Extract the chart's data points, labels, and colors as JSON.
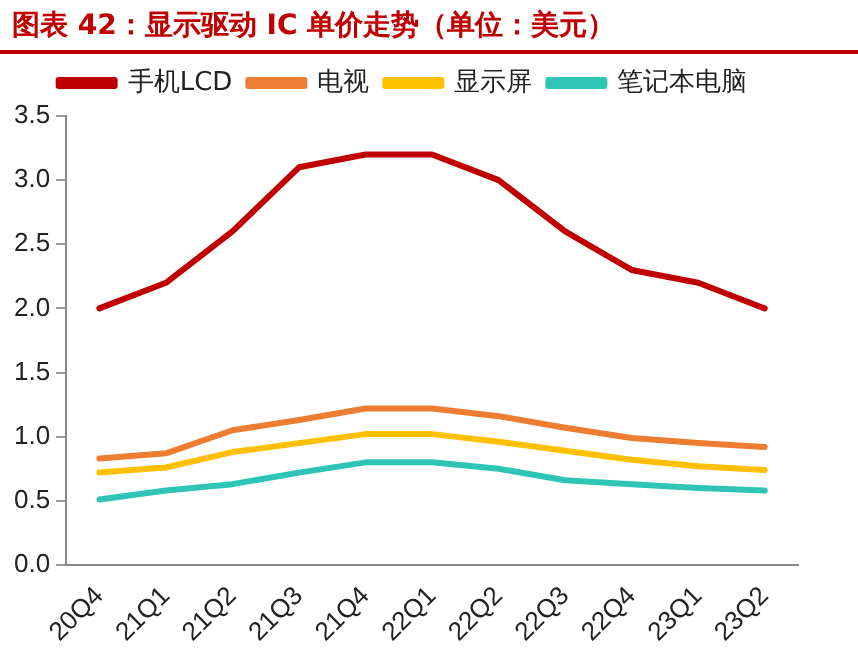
{
  "chart_data": {
    "type": "line",
    "title": "图表 42：显示驱动 IC 单价走势（单位：美元）",
    "categories": [
      "20Q4",
      "21Q1",
      "21Q2",
      "21Q3",
      "21Q4",
      "22Q1",
      "22Q2",
      "22Q3",
      "22Q4",
      "23Q1",
      "23Q2"
    ],
    "series": [
      {
        "name": "手机LCD",
        "color": "#c00000",
        "values": [
          2.0,
          2.2,
          2.6,
          3.1,
          3.2,
          3.2,
          3.0,
          2.6,
          2.3,
          2.2,
          2.0
        ]
      },
      {
        "name": "电视",
        "color": "#ed7d31",
        "values": [
          0.83,
          0.87,
          1.05,
          1.13,
          1.22,
          1.22,
          1.16,
          1.07,
          0.99,
          0.95,
          0.92
        ]
      },
      {
        "name": "显示屏",
        "color": "#ffc000",
        "values": [
          0.72,
          0.76,
          0.88,
          0.95,
          1.02,
          1.02,
          0.96,
          0.89,
          0.82,
          0.77,
          0.74
        ]
      },
      {
        "name": "笔记本电脑",
        "color": "#2ec4b6",
        "values": [
          0.51,
          0.58,
          0.63,
          0.72,
          0.8,
          0.8,
          0.75,
          0.66,
          0.63,
          0.6,
          0.58
        ]
      }
    ],
    "ylim": [
      0,
      3.5
    ],
    "yticks": [
      {
        "value": 0,
        "label": "0.0"
      },
      0.5,
      {
        "value": 1,
        "label": "1.0"
      },
      1.5,
      {
        "value": 2,
        "label": "2.0"
      },
      2.5,
      {
        "value": 3,
        "label": "3.0"
      },
      3.5
    ],
    "grid": false,
    "legend": "top",
    "marker": "none",
    "line_style": "solid"
  }
}
